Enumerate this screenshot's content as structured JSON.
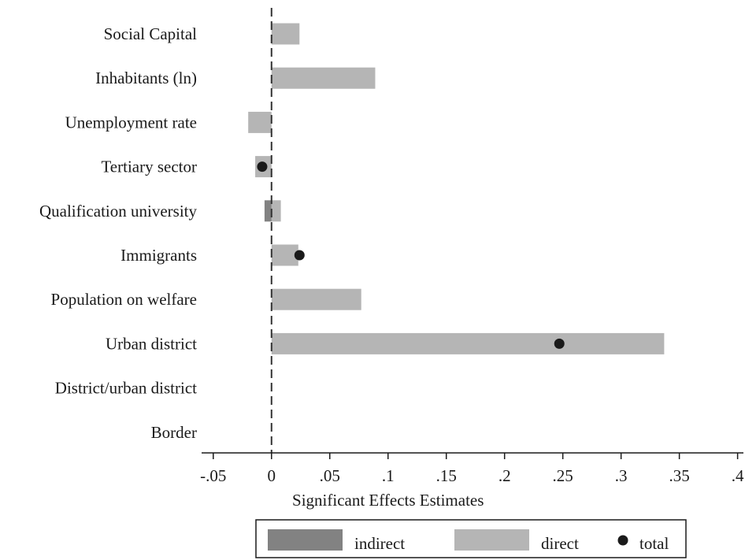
{
  "chart_data": {
    "type": "bar",
    "orientation": "horizontal",
    "xlabel": "Significant Effects Estimates",
    "xlim": [
      -0.06,
      0.405
    ],
    "xticks": [
      -0.05,
      0,
      0.05,
      0.1,
      0.15,
      0.2,
      0.25,
      0.3,
      0.35,
      0.4
    ],
    "xtick_labels": [
      "-.05",
      "0",
      ".05",
      ".1",
      ".15",
      ".2",
      ".25",
      ".3",
      ".35",
      ".4"
    ],
    "reference_line": 0,
    "categories": [
      "Social Capital",
      "Inhabitants (ln)",
      "Unemployment rate",
      "Tertiary sector",
      "Qualification university",
      "Immigrants",
      "Population on welfare",
      "Urban district",
      "District/urban district",
      "Border"
    ],
    "series": [
      {
        "name": "indirect",
        "kind": "bar",
        "color": "#828282",
        "values": [
          null,
          null,
          null,
          null,
          -0.006,
          null,
          null,
          null,
          null,
          null
        ]
      },
      {
        "name": "direct",
        "kind": "bar",
        "color": "#b5b5b5",
        "values": [
          0.024,
          0.089,
          -0.02,
          -0.014,
          0.008,
          0.023,
          0.077,
          0.337,
          null,
          null
        ]
      },
      {
        "name": "total",
        "kind": "point",
        "color": "#1a1a1a",
        "values": [
          null,
          null,
          null,
          -0.008,
          null,
          0.024,
          null,
          0.247,
          null,
          null
        ]
      }
    ],
    "legend": {
      "placement": "bottom",
      "items": [
        "indirect",
        "direct",
        "total"
      ]
    }
  }
}
